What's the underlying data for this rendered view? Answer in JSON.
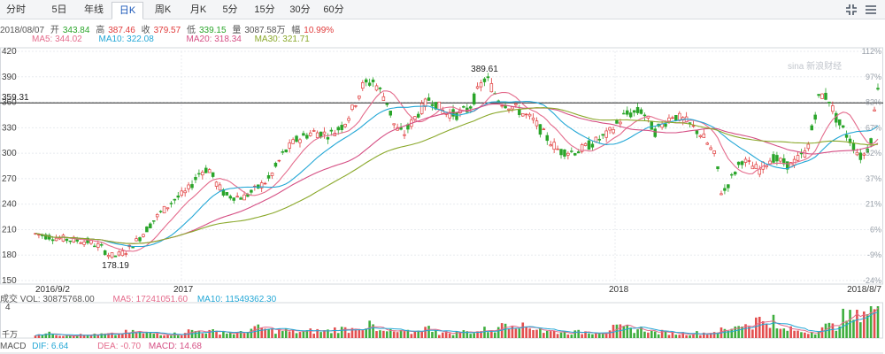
{
  "tabs": [
    {
      "label": "分时",
      "active": false
    },
    {
      "label": "5日",
      "active": false
    },
    {
      "label": "年线",
      "active": false
    },
    {
      "label": "日K",
      "active": true
    },
    {
      "label": "周K",
      "active": false
    },
    {
      "label": "月K",
      "active": false
    },
    {
      "label": "5分",
      "active": false
    },
    {
      "label": "15分",
      "active": false
    },
    {
      "label": "30分",
      "active": false
    },
    {
      "label": "60分",
      "active": false
    }
  ],
  "icons": {
    "fullscreen": "compress-icon",
    "menu": "menu-icon"
  },
  "info": {
    "date": "2018/08/07",
    "open_label": "开",
    "open": "343.84",
    "high_label": "高",
    "high": "387.46",
    "close_label": "收",
    "close": "379.57",
    "low_label": "低",
    "low": "339.15",
    "volume_label": "量",
    "volume": "3087.58万",
    "change_label": "幅",
    "change": "10.99%"
  },
  "ma_labels": [
    {
      "text": "MA5: 344.02",
      "color": "#e46b8c"
    },
    {
      "text": "MA10: 322.08",
      "color": "#23a7d6"
    },
    {
      "text": "MA20: 318.34",
      "color": "#d54f84"
    },
    {
      "text": "MA30: 321.71",
      "color": "#8aa82a"
    }
  ],
  "volume_info": {
    "label": "成交",
    "vol": "VOL: 30875768.00",
    "ma5": "MA5: 17241051.60",
    "ma10": "MA10: 11549362.30"
  },
  "volume_axis": {
    "top_label": "4",
    "unit_label": "千万"
  },
  "macd_info": {
    "label": "MACD",
    "dif": "DIF: 6.64",
    "dea": "DEA: -0.70",
    "macd": "MACD: 14.68"
  },
  "watermark": "sina 新浪财经",
  "colors": {
    "up": "#e03c3c",
    "down": "#2aa52a",
    "ma5": "#e46b8c",
    "ma10": "#23a7d6",
    "ma20": "#d54f84",
    "ma30": "#8aa82a"
  },
  "chart_data": {
    "type": "candlestick",
    "y_ticks": [
      420,
      390,
      360,
      330,
      300,
      270,
      240,
      210,
      180,
      150
    ],
    "right_axis_ticks": [
      "112%",
      "97%",
      "82%",
      "67%",
      "52%",
      "37%",
      "21%",
      "6%",
      "-9%",
      "-24%"
    ],
    "ylim": [
      150,
      420
    ],
    "x_labels": [
      "2016/9/2",
      "2017",
      "2018",
      "2018/8/7"
    ],
    "reference_line": {
      "value": 359.31,
      "label": "359.31"
    },
    "annotations": [
      {
        "label": "389.61",
        "value": 389.61,
        "kind": "high"
      },
      {
        "label": "178.19",
        "value": 178.19,
        "kind": "low"
      }
    ],
    "path_points": [
      [
        0,
        205
      ],
      [
        20,
        201
      ],
      [
        40,
        198
      ],
      [
        60,
        196
      ],
      [
        75,
        190
      ],
      [
        85,
        180
      ],
      [
        92,
        178.19
      ],
      [
        105,
        185
      ],
      [
        120,
        200
      ],
      [
        140,
        225
      ],
      [
        160,
        245
      ],
      [
        175,
        255
      ],
      [
        190,
        278
      ],
      [
        200,
        282
      ],
      [
        210,
        262
      ],
      [
        220,
        250
      ],
      [
        240,
        248
      ],
      [
        255,
        258
      ],
      [
        270,
        270
      ],
      [
        285,
        298
      ],
      [
        300,
        315
      ],
      [
        320,
        325
      ],
      [
        340,
        322
      ],
      [
        355,
        333
      ],
      [
        365,
        350
      ],
      [
        378,
        380
      ],
      [
        390,
        385
      ],
      [
        405,
        362
      ],
      [
        415,
        330
      ],
      [
        425,
        322
      ],
      [
        440,
        345
      ],
      [
        455,
        365
      ],
      [
        470,
        350
      ],
      [
        485,
        345
      ],
      [
        500,
        352
      ],
      [
        515,
        382
      ],
      [
        520,
        389.61
      ],
      [
        535,
        362
      ],
      [
        555,
        352
      ],
      [
        575,
        338
      ],
      [
        590,
        318
      ],
      [
        605,
        302
      ],
      [
        625,
        302
      ],
      [
        640,
        310
      ],
      [
        660,
        322
      ],
      [
        680,
        345
      ],
      [
        700,
        350
      ],
      [
        715,
        325
      ],
      [
        735,
        345
      ],
      [
        750,
        338
      ],
      [
        770,
        320
      ],
      [
        785,
        295
      ],
      [
        792,
        250
      ],
      [
        800,
        265
      ],
      [
        815,
        292
      ],
      [
        835,
        280
      ],
      [
        850,
        295
      ],
      [
        870,
        285
      ],
      [
        890,
        302
      ],
      [
        905,
        370
      ],
      [
        915,
        365
      ],
      [
        925,
        338
      ],
      [
        940,
        315
      ],
      [
        953,
        294
      ],
      [
        963,
        310
      ],
      [
        972,
        379.57
      ]
    ],
    "volume_levels": [
      0.14,
      0.1,
      0.1,
      0.12,
      0.18,
      0.14,
      0.13,
      0.22,
      0.2,
      0.16,
      0.3,
      0.24,
      0.2,
      0.22,
      0.28,
      0.38,
      0.2,
      0.18,
      0.3,
      0.16,
      0.2,
      0.26,
      0.5,
      0.34,
      0.2,
      0.18,
      0.2,
      0.3,
      0.28,
      0.18,
      0.15,
      0.16,
      0.24,
      0.44,
      0.56,
      0.26,
      0.2,
      0.36,
      0.64,
      0.9
    ]
  }
}
